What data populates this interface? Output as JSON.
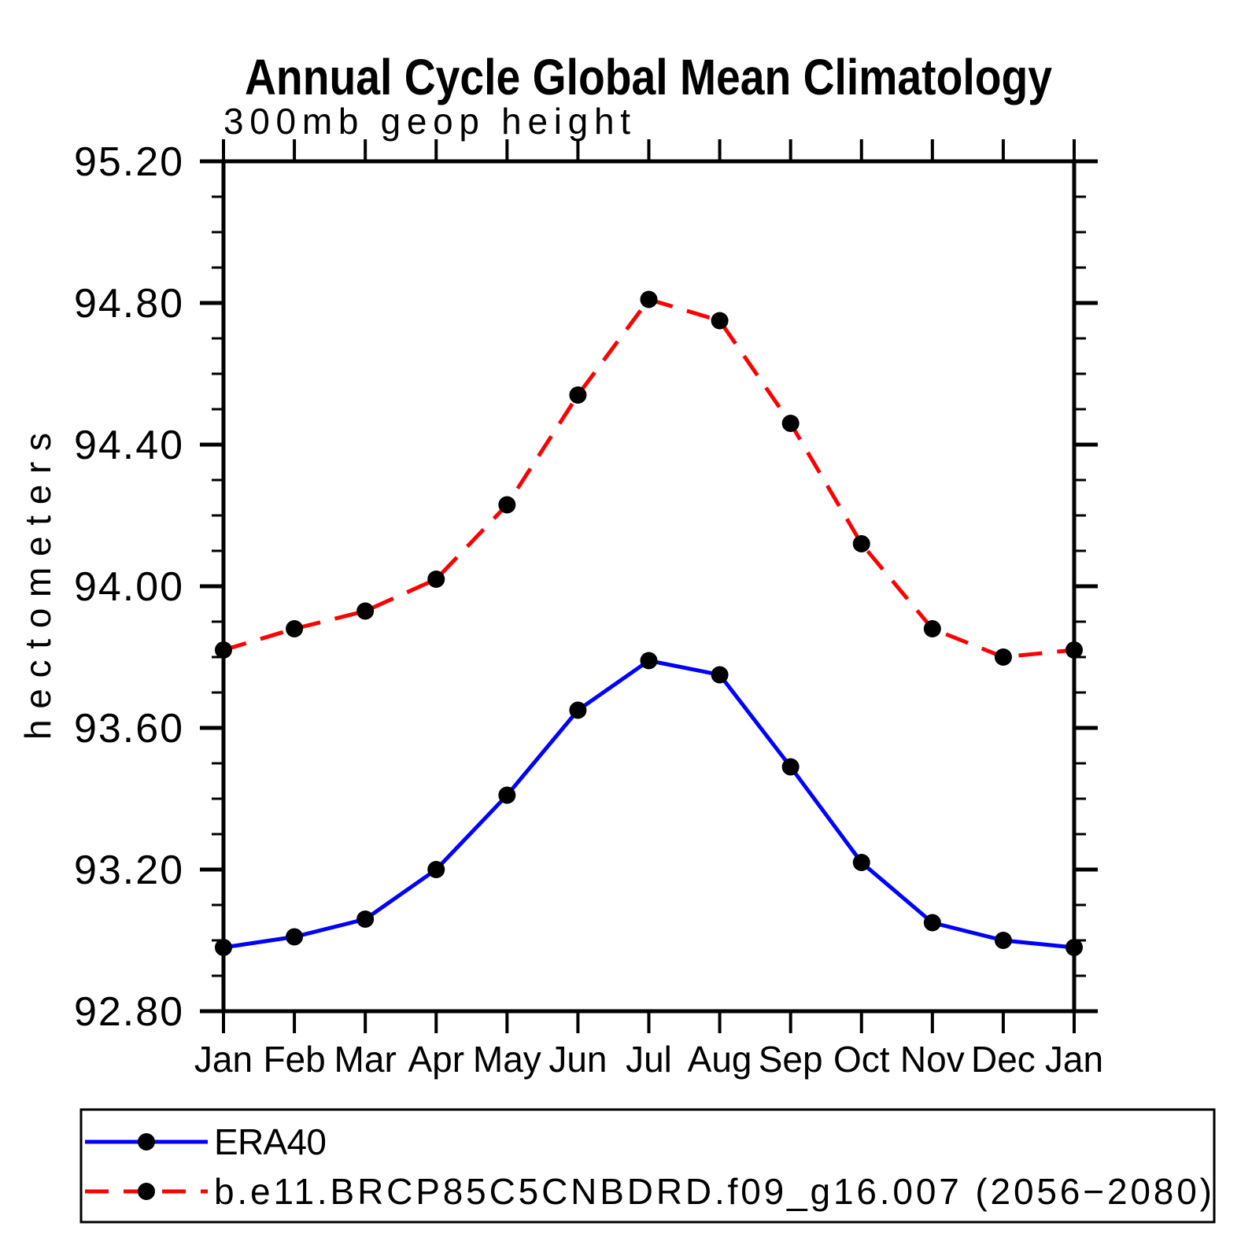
{
  "title": "Annual Cycle Global Mean Climatology",
  "subtitle": "300mb geop height",
  "colors": {
    "background": "#ffffff",
    "axis": "#000000",
    "marker": "#000000",
    "era40_line": "#0000ff",
    "model_line": "#ff0000"
  },
  "chart_data": {
    "type": "line",
    "title": "Annual Cycle Global Mean Climatology",
    "subtitle": "300mb geop height",
    "xlabel": "",
    "ylabel": "hectometers",
    "categories": [
      "Jan",
      "Feb",
      "Mar",
      "Apr",
      "May",
      "Jun",
      "Jul",
      "Aug",
      "Sep",
      "Oct",
      "Nov",
      "Dec",
      "Jan"
    ],
    "ylim": [
      92.8,
      95.2
    ],
    "ytick_major_interval": 0.4,
    "ytick_minor_interval": 0.1,
    "ytick_labels": [
      "92.80",
      "93.20",
      "93.60",
      "94.00",
      "94.40",
      "94.80",
      "95.20"
    ],
    "grid": false,
    "legend_position": "bottom",
    "series": [
      {
        "name": "ERA40",
        "line_color": "#0000ff",
        "line_style": "solid",
        "marker": "filled-circle",
        "marker_color": "#000000",
        "values": [
          92.98,
          93.01,
          93.06,
          93.2,
          93.41,
          93.65,
          93.79,
          93.75,
          93.49,
          93.22,
          93.05,
          93.0,
          92.98
        ]
      },
      {
        "name": "b.e11.BRCP85C5CNBDRD.f09_g16.007 (2056−2080)",
        "line_color": "#ff0000",
        "line_style": "dashed",
        "marker": "filled-circle",
        "marker_color": "#000000",
        "values": [
          93.82,
          93.88,
          93.93,
          94.02,
          94.23,
          94.54,
          94.81,
          94.75,
          94.46,
          94.12,
          93.88,
          93.8,
          93.82
        ]
      }
    ]
  }
}
